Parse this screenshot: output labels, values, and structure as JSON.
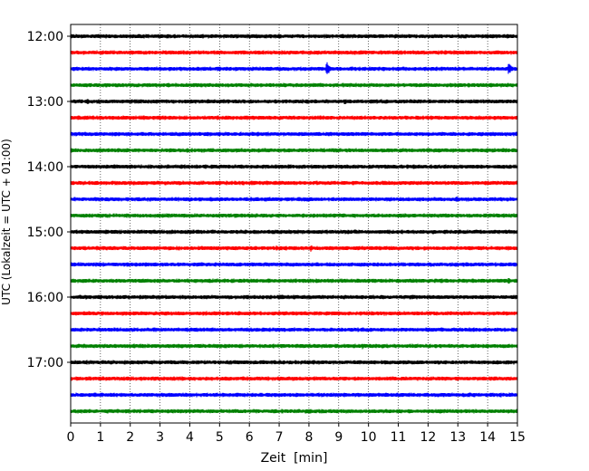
{
  "chart_data": {
    "type": "line",
    "title": "",
    "xlabel": "Zeit  [min]",
    "ylabel": "UTC (Lokalzeit = UTC + 01:00)",
    "xlim": [
      0,
      15
    ],
    "x_ticks": [
      "0",
      "1",
      "2",
      "3",
      "4",
      "5",
      "6",
      "7",
      "8",
      "9",
      "10",
      "11",
      "12",
      "13",
      "14",
      "15"
    ],
    "y_tick_labels": [
      "12:00",
      "13:00",
      "14:00",
      "15:00",
      "16:00",
      "17:00"
    ],
    "grid": "vertical dotted",
    "colors": [
      "#000000",
      "#ff0000",
      "#0000ff",
      "#008000"
    ],
    "series": [
      {
        "start": "12:00",
        "color": "#000000",
        "events": [
          {
            "x": 5.5,
            "amp": 0.12
          },
          {
            "x": 9.7,
            "amp": 0.1
          }
        ]
      },
      {
        "start": "12:15",
        "color": "#ff0000",
        "events": [
          {
            "x": 8.8,
            "amp": 0.1
          }
        ]
      },
      {
        "start": "12:30",
        "color": "#0000ff",
        "events": [
          {
            "x": 1.1,
            "amp": 0.15
          },
          {
            "x": 1.8,
            "amp": 0.12
          },
          {
            "x": 8.6,
            "amp": 0.7
          },
          {
            "x": 14.7,
            "amp": 0.6
          }
        ]
      },
      {
        "start": "12:45",
        "color": "#008000",
        "events": [
          {
            "x": 4.8,
            "amp": 0.15
          },
          {
            "x": 6.0,
            "amp": 0.1
          },
          {
            "x": 14.95,
            "amp": 0.2
          }
        ]
      },
      {
        "start": "13:00",
        "color": "#000000",
        "events": [
          {
            "x": 0.55,
            "amp": 0.3
          },
          {
            "x": 2.8,
            "amp": 0.15
          },
          {
            "x": 9.2,
            "amp": 0.3
          }
        ]
      },
      {
        "start": "13:15",
        "color": "#ff0000",
        "events": [
          {
            "x": 0.2,
            "amp": 0.15
          },
          {
            "x": 6.8,
            "amp": 0.12
          }
        ]
      },
      {
        "start": "13:30",
        "color": "#0000ff",
        "events": [
          {
            "x": 3.1,
            "amp": 0.15
          },
          {
            "x": 11.7,
            "amp": 0.12
          },
          {
            "x": 12.7,
            "amp": 0.12
          }
        ]
      },
      {
        "start": "13:45",
        "color": "#008000",
        "events": [
          {
            "x": 1.1,
            "amp": 0.12
          },
          {
            "x": 4.3,
            "amp": 0.12
          },
          {
            "x": 9.6,
            "amp": 0.12
          }
        ]
      },
      {
        "start": "14:00",
        "color": "#000000",
        "events": [
          {
            "x": 7.0,
            "amp": 0.1
          }
        ]
      },
      {
        "start": "14:15",
        "color": "#ff0000",
        "events": [
          {
            "x": 5.4,
            "amp": 0.15
          },
          {
            "x": 14.1,
            "amp": 0.25
          }
        ]
      },
      {
        "start": "14:30",
        "color": "#0000ff",
        "events": [
          {
            "x": 3.0,
            "amp": 0.2
          },
          {
            "x": 7.8,
            "amp": 0.22
          },
          {
            "x": 12.95,
            "amp": 0.35
          }
        ]
      },
      {
        "start": "14:45",
        "color": "#008000",
        "events": [
          {
            "x": 2.9,
            "amp": 0.12
          },
          {
            "x": 9.9,
            "amp": 0.12
          },
          {
            "x": 14.2,
            "amp": 0.25
          }
        ]
      },
      {
        "start": "15:00",
        "color": "#000000",
        "events": [
          {
            "x": 0.8,
            "amp": 0.12
          },
          {
            "x": 11.1,
            "amp": 0.15
          }
        ]
      },
      {
        "start": "15:15",
        "color": "#ff0000",
        "events": [
          {
            "x": 6.9,
            "amp": 0.25
          },
          {
            "x": 8.05,
            "amp": 0.35
          }
        ]
      },
      {
        "start": "15:30",
        "color": "#0000ff",
        "events": [
          {
            "x": 5.8,
            "amp": 0.1
          }
        ]
      },
      {
        "start": "15:45",
        "color": "#008000",
        "events": [
          {
            "x": 1.6,
            "amp": 0.2
          },
          {
            "x": 14.7,
            "amp": 0.3
          }
        ]
      },
      {
        "start": "16:00",
        "color": "#000000",
        "events": [
          {
            "x": 0.5,
            "amp": 0.25
          },
          {
            "x": 1.6,
            "amp": 0.15
          },
          {
            "x": 2.9,
            "amp": 0.15
          },
          {
            "x": 4.0,
            "amp": 0.15
          }
        ]
      },
      {
        "start": "16:15",
        "color": "#ff0000",
        "events": [
          {
            "x": 9.35,
            "amp": 0.25
          }
        ]
      },
      {
        "start": "16:30",
        "color": "#0000ff",
        "events": [
          {
            "x": 9.9,
            "amp": 0.1
          }
        ]
      },
      {
        "start": "16:45",
        "color": "#008000",
        "events": [
          {
            "x": 4.1,
            "amp": 0.15
          },
          {
            "x": 9.8,
            "amp": 0.3
          }
        ]
      },
      {
        "start": "17:00",
        "color": "#000000",
        "events": [
          {
            "x": 3.1,
            "amp": 0.12
          },
          {
            "x": 12.2,
            "amp": 0.15
          }
        ]
      },
      {
        "start": "17:15",
        "color": "#ff0000",
        "events": [
          {
            "x": 10.7,
            "amp": 0.1
          }
        ]
      },
      {
        "start": "17:30",
        "color": "#0000ff",
        "events": [
          {
            "x": 3.8,
            "amp": 0.15
          },
          {
            "x": 5.1,
            "amp": 0.15
          }
        ]
      },
      {
        "start": "17:45",
        "color": "#008000",
        "events": [
          {
            "x": 10.5,
            "amp": 0.1
          }
        ]
      }
    ]
  }
}
